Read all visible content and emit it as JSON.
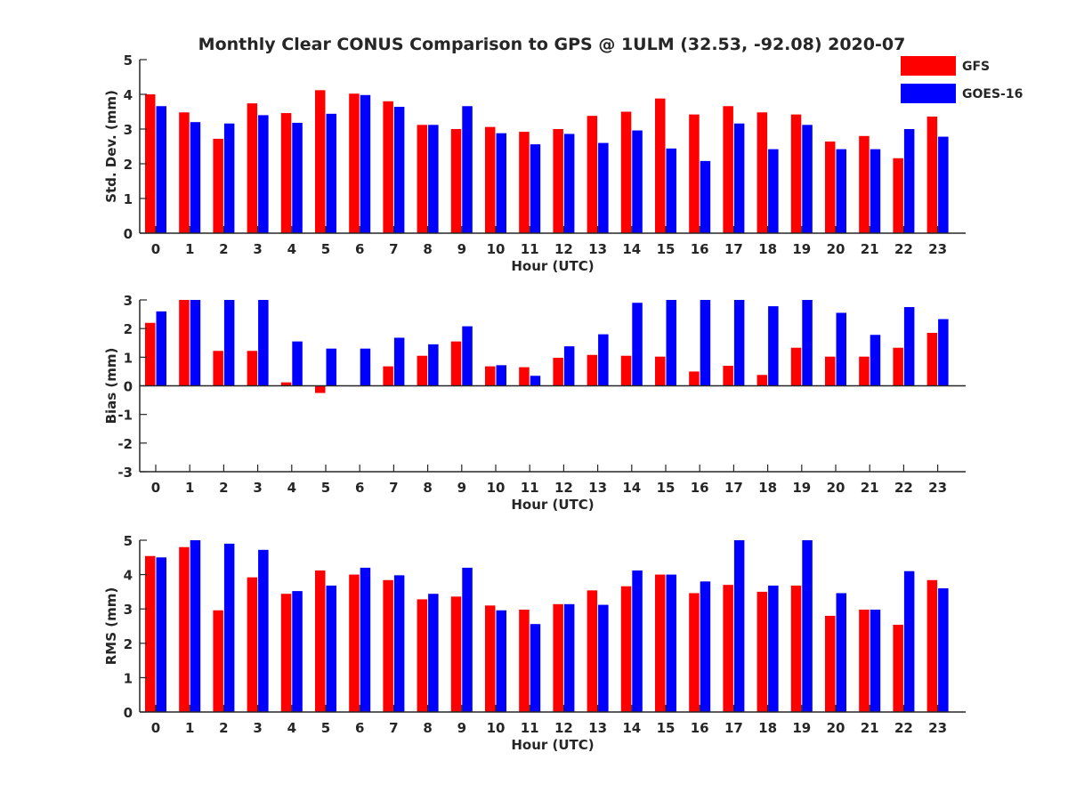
{
  "title": "Monthly Clear CONUS Comparison to GPS @ 1ULM (32.53, -92.08) 2020-07",
  "legend": [
    {
      "name": "GFS",
      "color": "#ff0000"
    },
    {
      "name": "GOES-16",
      "color": "#0000ff"
    }
  ],
  "chart_data": [
    {
      "type": "bar",
      "ylabel": "Std. Dev. (mm)",
      "xlabel": "Hour (UTC)",
      "categories": [
        "0",
        "1",
        "2",
        "3",
        "4",
        "5",
        "6",
        "7",
        "8",
        "9",
        "10",
        "11",
        "12",
        "13",
        "14",
        "15",
        "16",
        "17",
        "18",
        "19",
        "20",
        "21",
        "22",
        "23"
      ],
      "ylim": [
        0,
        5
      ],
      "yticks": [
        0,
        1,
        2,
        3,
        4,
        5
      ],
      "series": [
        {
          "name": "GFS",
          "values": [
            4.0,
            3.48,
            2.72,
            3.74,
            3.46,
            4.12,
            4.02,
            3.8,
            3.12,
            3.0,
            3.06,
            2.92,
            3.0,
            3.38,
            3.5,
            3.88,
            3.42,
            3.66,
            3.48,
            3.42,
            2.64,
            2.8,
            2.16,
            3.36
          ]
        },
        {
          "name": "GOES-16",
          "values": [
            3.66,
            3.2,
            3.16,
            3.4,
            3.18,
            3.44,
            3.98,
            3.64,
            3.12,
            3.66,
            2.88,
            2.56,
            2.86,
            2.6,
            2.96,
            2.44,
            2.08,
            3.16,
            2.42,
            3.12,
            2.42,
            2.42,
            3.0,
            2.78
          ]
        }
      ],
      "grid": false
    },
    {
      "type": "bar",
      "ylabel": "Bias (mm)",
      "xlabel": "Hour (UTC)",
      "categories": [
        "0",
        "1",
        "2",
        "3",
        "4",
        "5",
        "6",
        "7",
        "8",
        "9",
        "10",
        "11",
        "12",
        "13",
        "14",
        "15",
        "16",
        "17",
        "18",
        "19",
        "20",
        "21",
        "22",
        "23"
      ],
      "ylim": [
        -3,
        3
      ],
      "yticks": [
        -3,
        -2,
        -1,
        0,
        1,
        2,
        3
      ],
      "series": [
        {
          "name": "GFS",
          "values": [
            2.2,
            3.0,
            1.22,
            1.22,
            0.12,
            -0.25,
            0.0,
            0.68,
            1.05,
            1.55,
            0.68,
            0.65,
            0.98,
            1.08,
            1.05,
            1.02,
            0.5,
            0.7,
            0.38,
            1.33,
            1.02,
            1.02,
            1.33,
            1.85
          ]
        },
        {
          "name": "GOES-16",
          "values": [
            2.6,
            3.0,
            3.0,
            3.0,
            1.55,
            1.3,
            1.3,
            1.68,
            1.45,
            2.08,
            0.72,
            0.35,
            1.38,
            1.8,
            2.9,
            3.0,
            3.0,
            3.0,
            2.78,
            3.0,
            2.55,
            1.78,
            2.75,
            2.33
          ]
        }
      ],
      "grid": false
    },
    {
      "type": "bar",
      "ylabel": "RMS (mm)",
      "xlabel": "Hour (UTC)",
      "categories": [
        "0",
        "1",
        "2",
        "3",
        "4",
        "5",
        "6",
        "7",
        "8",
        "9",
        "10",
        "11",
        "12",
        "13",
        "14",
        "15",
        "16",
        "17",
        "18",
        "19",
        "20",
        "21",
        "22",
        "23"
      ],
      "ylim": [
        0,
        5
      ],
      "yticks": [
        0,
        1,
        2,
        3,
        4,
        5
      ],
      "series": [
        {
          "name": "GFS",
          "values": [
            4.54,
            4.8,
            2.96,
            3.92,
            3.44,
            4.12,
            4.0,
            3.84,
            3.28,
            3.36,
            3.1,
            2.98,
            3.14,
            3.54,
            3.66,
            4.0,
            3.46,
            3.7,
            3.5,
            3.68,
            2.8,
            2.98,
            2.54,
            3.84
          ]
        },
        {
          "name": "GOES-16",
          "values": [
            4.5,
            5.0,
            4.9,
            4.72,
            3.52,
            3.68,
            4.2,
            3.98,
            3.44,
            4.2,
            2.96,
            2.56,
            3.14,
            3.12,
            4.12,
            4.0,
            3.8,
            5.0,
            3.68,
            5.0,
            3.46,
            2.98,
            4.1,
            3.6
          ]
        }
      ],
      "grid": false
    }
  ]
}
